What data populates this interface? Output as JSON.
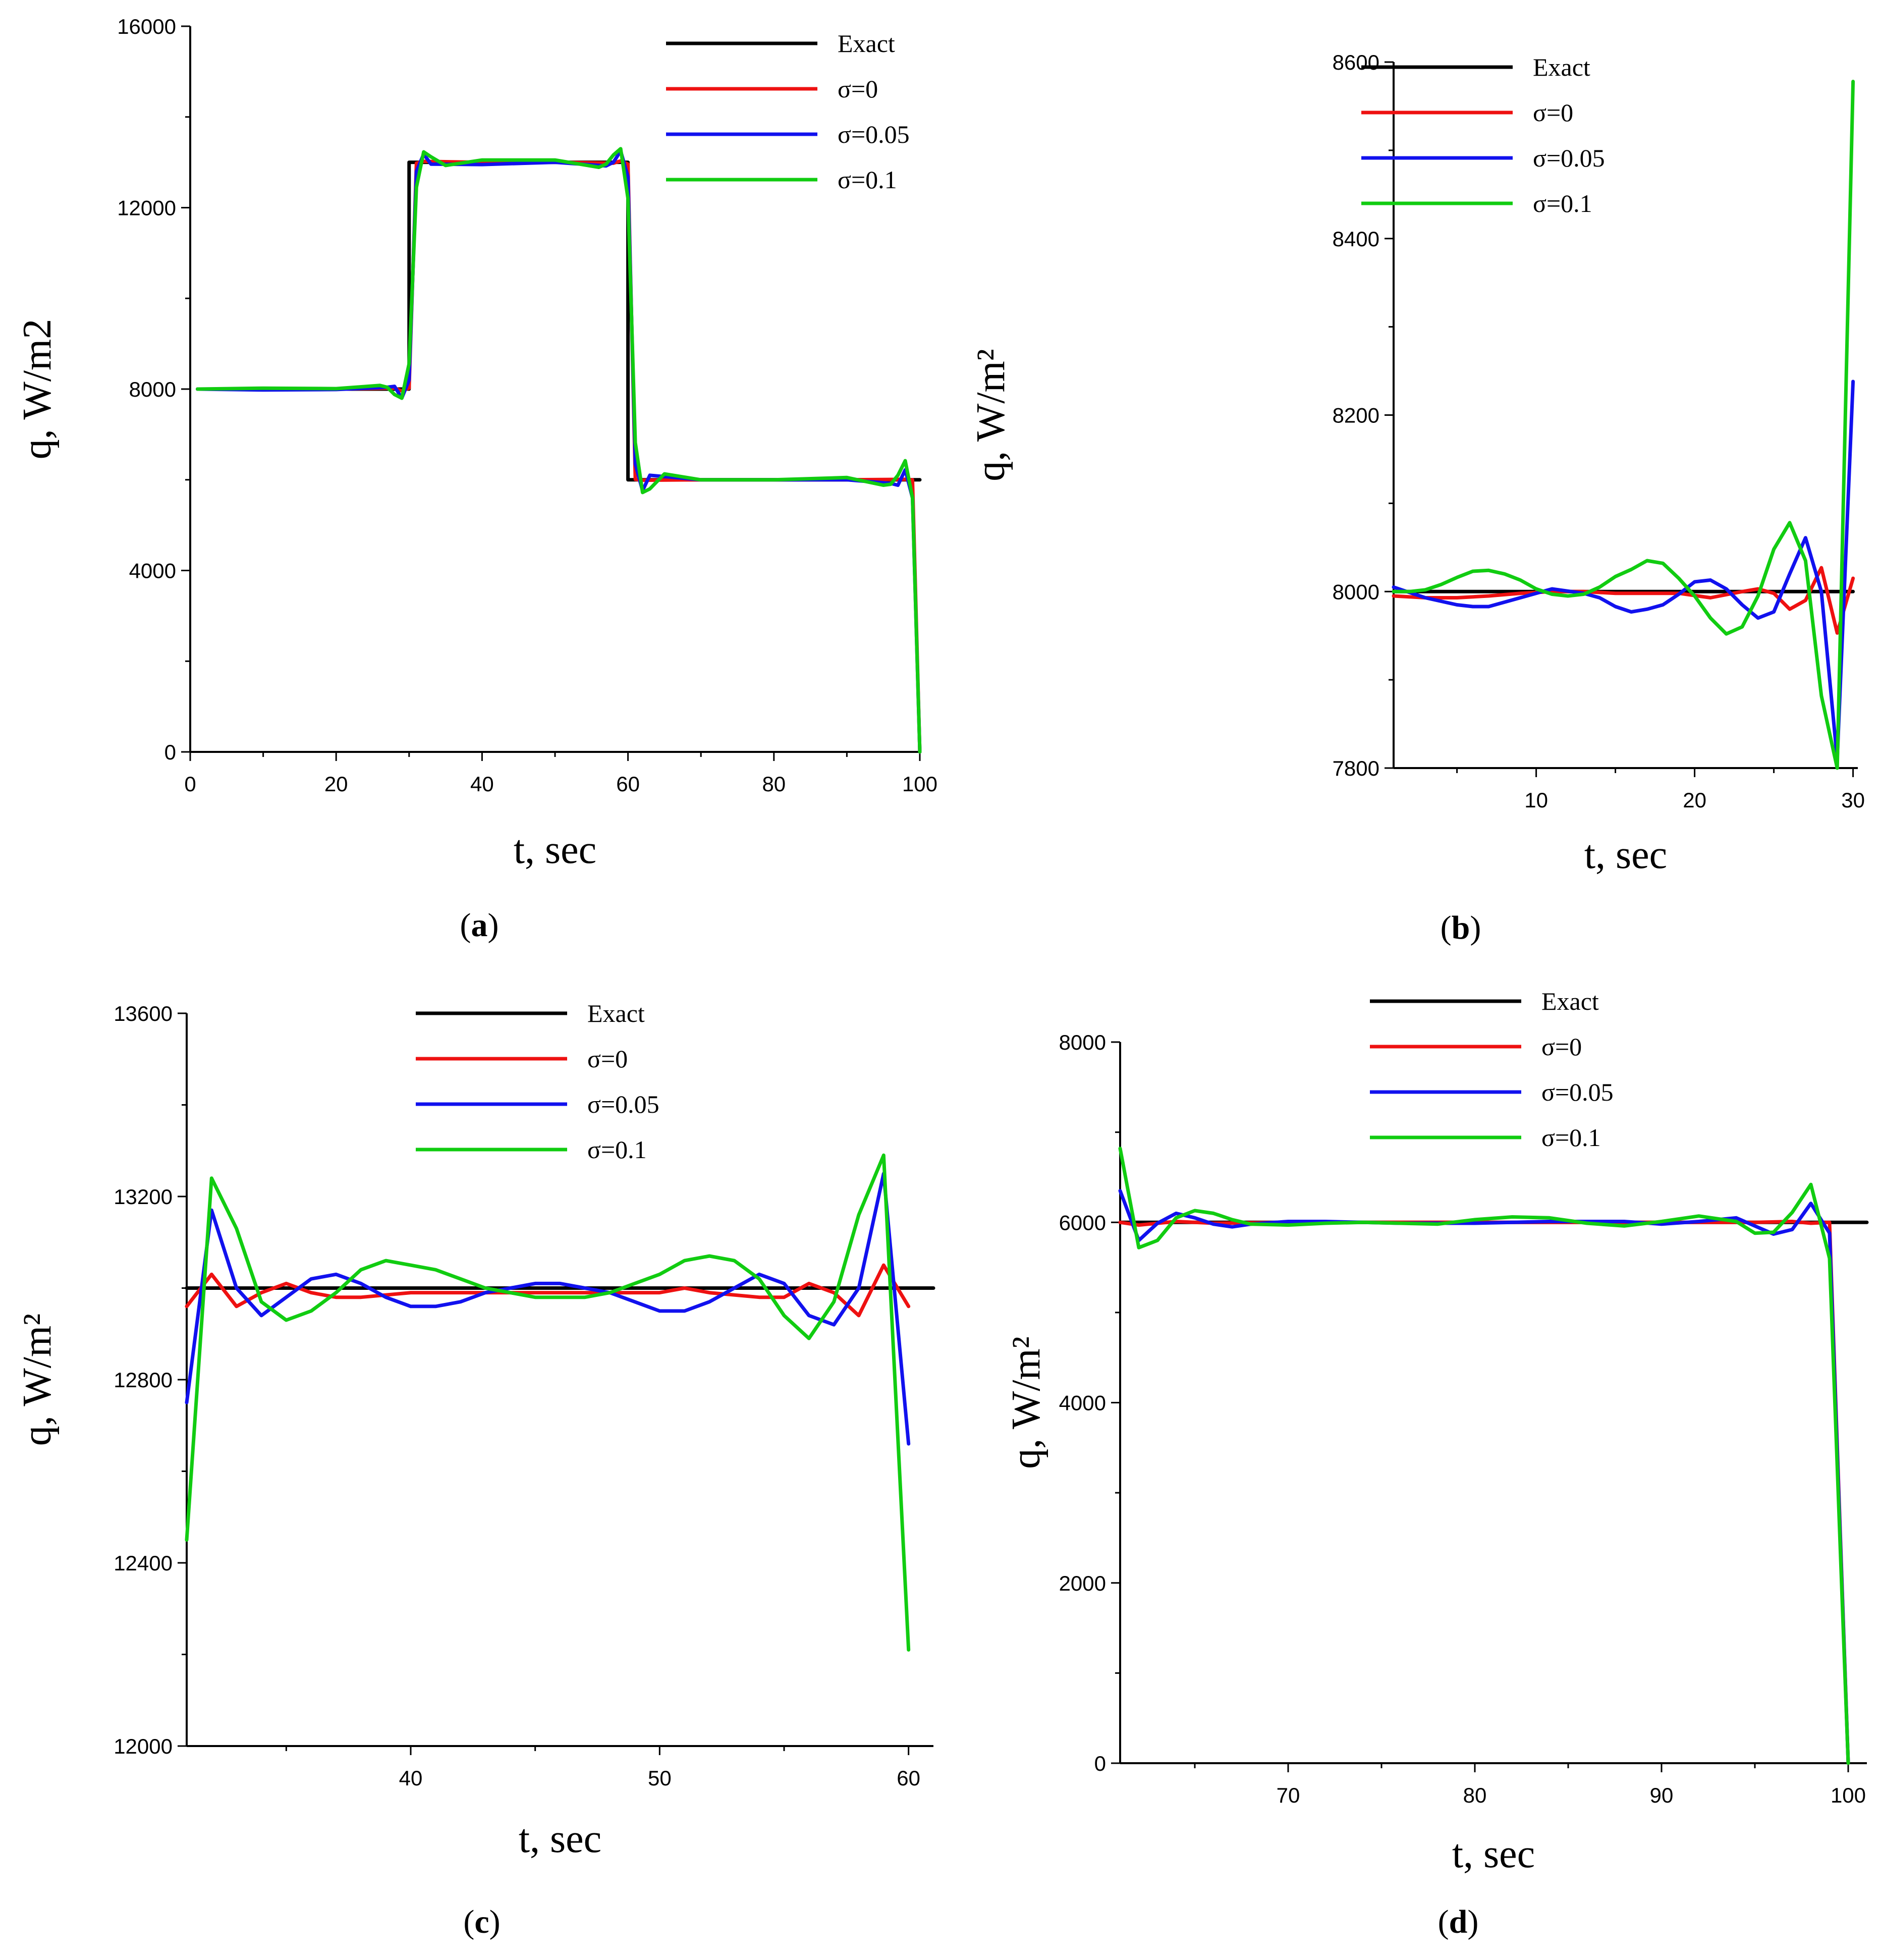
{
  "figure": {
    "panel_label_prefix": "(",
    "panel_label_suffix": ")"
  },
  "chart_data": [
    {
      "id": "a",
      "panel_label": "a",
      "type": "line",
      "xlabel": "t, sec",
      "ylabel": "q, W/m2",
      "xlim": [
        0,
        100
      ],
      "ylim": [
        0,
        16000
      ],
      "xticks": [
        0,
        20,
        40,
        60,
        80,
        100
      ],
      "xtick_labels": [
        "0",
        "20",
        "40",
        "60",
        "80",
        "100"
      ],
      "yticks": [
        0,
        4000,
        8000,
        12000,
        16000
      ],
      "ytick_labels": [
        "0",
        "4000",
        "8000",
        "12000",
        "16000"
      ],
      "legend": [
        "Exact",
        "σ=0",
        "σ=0.05",
        "σ=0.1"
      ],
      "series": [
        {
          "name": "Exact",
          "color": "#000000",
          "x": [
            1,
            30,
            30,
            60,
            60,
            100
          ],
          "y": [
            8000,
            8000,
            13000,
            13000,
            6000,
            6000
          ]
        },
        {
          "name": "σ=0",
          "color": "#ee1111",
          "x": [
            1,
            10,
            20,
            28,
            29,
            30,
            31,
            32,
            40,
            50,
            58,
            59,
            60,
            61,
            62,
            70,
            80,
            90,
            98,
            99,
            100
          ],
          "y": [
            8000,
            8000,
            8000,
            8020,
            7960,
            8020,
            12980,
            13020,
            13000,
            13000,
            12980,
            13030,
            12960,
            6010,
            5990,
            6000,
            6000,
            6000,
            6010,
            6000,
            0
          ]
        },
        {
          "name": "σ=0.05",
          "color": "#1111ee",
          "x": [
            1,
            10,
            20,
            27,
            28,
            29,
            30,
            31,
            32,
            33,
            40,
            50,
            57,
            58,
            59,
            60,
            61,
            62,
            63,
            70,
            80,
            90,
            96,
            97,
            98,
            99,
            100
          ],
          "y": [
            8000,
            7980,
            7990,
            8040,
            8060,
            7800,
            8200,
            12800,
            13180,
            12960,
            12950,
            13000,
            12920,
            13000,
            13250,
            12680,
            6350,
            5760,
            6100,
            6000,
            6000,
            6000,
            5920,
            5880,
            6220,
            5600,
            0
          ]
        },
        {
          "name": "σ=0.1",
          "color": "#11cc11",
          "x": [
            1,
            10,
            20,
            26,
            27,
            28,
            29,
            30,
            31,
            32,
            33,
            35,
            40,
            50,
            56,
            57,
            58,
            59,
            60,
            61,
            62,
            63,
            65,
            70,
            80,
            90,
            95,
            96,
            97,
            98,
            99,
            100
          ],
          "y": [
            8000,
            8020,
            8010,
            8080,
            8040,
            7880,
            7800,
            8560,
            12450,
            13230,
            13120,
            12930,
            13050,
            13050,
            12890,
            12960,
            13160,
            13300,
            12200,
            6820,
            5720,
            5800,
            6130,
            6000,
            6000,
            6050,
            5880,
            5900,
            6100,
            6420,
            5600,
            0
          ]
        }
      ]
    },
    {
      "id": "b",
      "panel_label": "b",
      "type": "line",
      "xlabel": "t, sec",
      "ylabel": "q, W/m²",
      "xlim": [
        1,
        30.3
      ],
      "ylim": [
        7800,
        8600
      ],
      "xticks": [
        10,
        20,
        30
      ],
      "xtick_labels": [
        "10",
        "20",
        "30"
      ],
      "xminor": [
        5,
        15,
        25
      ],
      "yticks": [
        7800,
        8000,
        8200,
        8400,
        8600
      ],
      "ytick_labels": [
        "7800",
        "8000",
        "8200",
        "8400",
        "8600"
      ],
      "legend": [
        "Exact",
        "σ=0",
        "σ=0.05",
        "σ=0.1"
      ],
      "series": [
        {
          "name": "Exact",
          "color": "#000000",
          "x": [
            1,
            30
          ],
          "y": [
            8000,
            8000
          ]
        },
        {
          "name": "σ=0",
          "color": "#ee1111",
          "x": [
            1,
            3,
            5,
            7,
            9,
            11,
            13,
            15,
            17,
            19,
            21,
            23,
            24,
            25,
            26,
            27,
            28,
            29,
            30
          ],
          "y": [
            7995,
            7993,
            7993,
            7995,
            7998,
            8000,
            8000,
            7998,
            7998,
            7998,
            7993,
            8000,
            8003,
            7998,
            7980,
            7990,
            8027,
            7953,
            8015
          ]
        },
        {
          "name": "σ=0.05",
          "color": "#1111ee",
          "x": [
            1,
            3,
            5,
            6,
            7,
            9,
            11,
            13,
            14,
            15,
            16,
            17,
            18,
            19,
            20,
            21,
            22,
            23,
            24,
            25,
            26,
            27,
            28,
            29,
            30
          ],
          "y": [
            8005,
            7993,
            7985,
            7983,
            7983,
            7993,
            8003,
            7998,
            7993,
            7983,
            7977,
            7980,
            7985,
            7997,
            8011,
            8013,
            8003,
            7985,
            7970,
            7977,
            8020,
            8061,
            8000,
            7810,
            8238
          ]
        },
        {
          "name": "σ=0.1",
          "color": "#11cc11",
          "x": [
            1,
            2,
            3,
            4,
            5,
            6,
            7,
            8,
            9,
            10,
            11,
            12,
            13,
            14,
            15,
            16,
            17,
            18,
            19,
            20,
            21,
            22,
            23,
            24,
            25,
            26,
            27,
            28,
            29,
            30
          ],
          "y": [
            8000,
            8000,
            8002,
            8008,
            8016,
            8023,
            8024,
            8020,
            8013,
            8003,
            7997,
            7995,
            7997,
            8005,
            8017,
            8025,
            8035,
            8032,
            8015,
            7995,
            7970,
            7952,
            7960,
            7995,
            8048,
            8078,
            8035,
            7882,
            7800,
            8578
          ]
        }
      ]
    },
    {
      "id": "c",
      "panel_label": "c",
      "type": "line",
      "xlabel": "t, sec",
      "ylabel": "q, W/m²",
      "xlim": [
        31,
        61
      ],
      "ylim": [
        12000,
        13600
      ],
      "xticks": [
        40,
        50,
        60
      ],
      "xtick_labels": [
        "40",
        "50",
        "60"
      ],
      "xminor": [
        35,
        45,
        55
      ],
      "yticks": [
        12000,
        12400,
        12800,
        13200,
        13600
      ],
      "ytick_labels": [
        "12000",
        "12400",
        "12800",
        "13200",
        "13600"
      ],
      "legend": [
        "Exact",
        "σ=0",
        "σ=0.05",
        "σ=0.1"
      ],
      "series": [
        {
          "name": "Exact",
          "color": "#000000",
          "x": [
            31,
            61
          ],
          "y": [
            13000,
            13000
          ]
        },
        {
          "name": "σ=0",
          "color": "#ee1111",
          "x": [
            31,
            32,
            33,
            34,
            35,
            36,
            37,
            38,
            40,
            42,
            44,
            46,
            48,
            50,
            51,
            52,
            54,
            55,
            56,
            57,
            58,
            59,
            60
          ],
          "y": [
            12960,
            13030,
            12960,
            12990,
            13010,
            12990,
            12980,
            12980,
            12990,
            12990,
            12990,
            12990,
            12990,
            12990,
            13000,
            12990,
            12980,
            12980,
            13010,
            12990,
            12940,
            13050,
            12960
          ]
        },
        {
          "name": "σ=0.05",
          "color": "#1111ee",
          "x": [
            31,
            32,
            33,
            34,
            35,
            36,
            37,
            38,
            39,
            40,
            41,
            42,
            43,
            44,
            45,
            46,
            47,
            48,
            49,
            50,
            51,
            52,
            53,
            54,
            55,
            56,
            57,
            58,
            59,
            60
          ],
          "y": [
            12750,
            13170,
            13000,
            12940,
            12980,
            13020,
            13030,
            13010,
            12980,
            12960,
            12960,
            12970,
            12990,
            13000,
            13010,
            13010,
            13000,
            12990,
            12970,
            12950,
            12950,
            12970,
            13000,
            13030,
            13010,
            12940,
            12920,
            13000,
            13250,
            12660
          ]
        },
        {
          "name": "σ=0.1",
          "color": "#11cc11",
          "x": [
            31,
            32,
            33,
            34,
            35,
            36,
            37,
            38,
            39,
            40,
            41,
            42,
            43,
            44,
            45,
            46,
            47,
            48,
            49,
            50,
            51,
            52,
            53,
            54,
            55,
            56,
            57,
            58,
            59,
            60
          ],
          "y": [
            12450,
            13240,
            13130,
            12970,
            12930,
            12950,
            12990,
            13040,
            13060,
            13050,
            13040,
            13020,
            13000,
            12990,
            12980,
            12980,
            12980,
            12990,
            13010,
            13030,
            13060,
            13070,
            13060,
            13020,
            12940,
            12890,
            12970,
            13160,
            13290,
            12210
          ]
        }
      ]
    },
    {
      "id": "d",
      "panel_label": "d",
      "type": "line",
      "xlabel": "t, sec",
      "ylabel": "q, W/m²",
      "xlim": [
        61,
        101
      ],
      "ylim": [
        0,
        8000
      ],
      "xticks": [
        70,
        80,
        90,
        100
      ],
      "xtick_labels": [
        "70",
        "80",
        "90",
        "100"
      ],
      "xminor": [
        65,
        75,
        85,
        95
      ],
      "yticks": [
        0,
        2000,
        4000,
        6000,
        8000
      ],
      "ytick_labels": [
        "0",
        "2000",
        "4000",
        "6000",
        "8000"
      ],
      "legend": [
        "Exact",
        "σ=0",
        "σ=0.05",
        "σ=0.1"
      ],
      "series": [
        {
          "name": "Exact",
          "color": "#000000",
          "x": [
            61,
            100,
            100,
            101
          ],
          "y": [
            6000,
            6000,
            6000,
            6000
          ]
        },
        {
          "name": "σ=0",
          "color": "#ee1111",
          "x": [
            61,
            62,
            64,
            66,
            70,
            75,
            80,
            85,
            90,
            95,
            97,
            98,
            99,
            100
          ],
          "y": [
            6000,
            5970,
            6010,
            5990,
            6000,
            6000,
            6000,
            6000,
            6000,
            6000,
            6010,
            5990,
            6000,
            0
          ]
        },
        {
          "name": "σ=0.05",
          "color": "#1111ee",
          "x": [
            61,
            62,
            63,
            64,
            65,
            66,
            67,
            68,
            70,
            72,
            74,
            76,
            78,
            80,
            82,
            84,
            86,
            88,
            90,
            92,
            94,
            96,
            97,
            98,
            99,
            100
          ],
          "y": [
            6350,
            5800,
            5990,
            6100,
            6050,
            5980,
            5950,
            5980,
            6010,
            6010,
            6000,
            5990,
            5990,
            5990,
            6000,
            6010,
            6010,
            6010,
            5980,
            6010,
            6050,
            5870,
            5920,
            6210,
            5880,
            0
          ]
        },
        {
          "name": "σ=0.1",
          "color": "#11cc11",
          "x": [
            61,
            62,
            63,
            64,
            65,
            66,
            67,
            68,
            70,
            72,
            74,
            76,
            78,
            80,
            82,
            84,
            86,
            88,
            90,
            92,
            94,
            95,
            96,
            97,
            98,
            99,
            100
          ],
          "y": [
            6820,
            5720,
            5800,
            6050,
            6130,
            6100,
            6030,
            5980,
            5970,
            5990,
            6000,
            5990,
            5980,
            6030,
            6060,
            6050,
            5990,
            5960,
            6010,
            6070,
            6010,
            5880,
            5890,
            6110,
            6420,
            5600,
            0
          ]
        }
      ]
    }
  ]
}
